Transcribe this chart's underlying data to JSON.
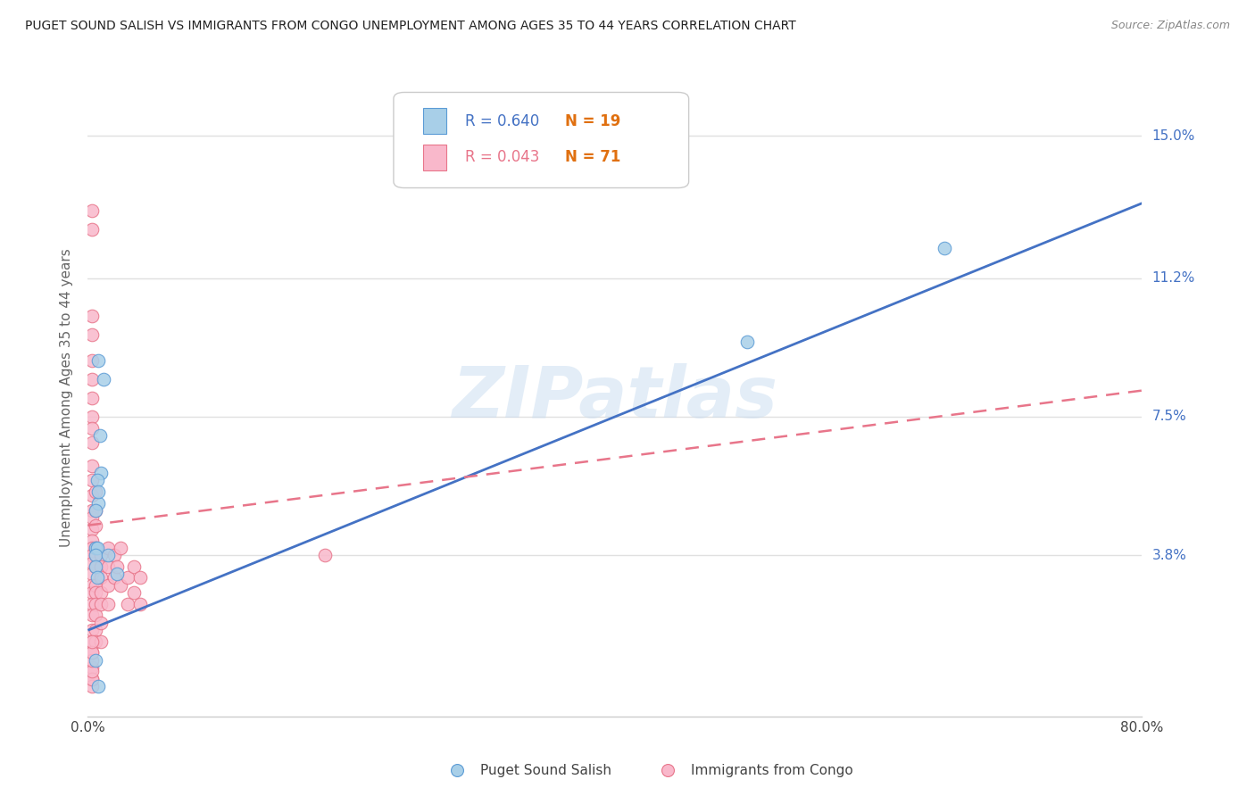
{
  "title": "PUGET SOUND SALISH VS IMMIGRANTS FROM CONGO UNEMPLOYMENT AMONG AGES 35 TO 44 YEARS CORRELATION CHART",
  "source": "Source: ZipAtlas.com",
  "ylabel": "Unemployment Among Ages 35 to 44 years",
  "xlim": [
    0,
    0.8
  ],
  "ylim": [
    -0.005,
    0.165
  ],
  "xticks": [
    0.0,
    0.1,
    0.2,
    0.3,
    0.4,
    0.5,
    0.6,
    0.7,
    0.8
  ],
  "xticklabels": [
    "0.0%",
    "",
    "",
    "",
    "",
    "",
    "",
    "",
    "80.0%"
  ],
  "ytick_positions": [
    0.038,
    0.075,
    0.112,
    0.15
  ],
  "ytick_labels": [
    "3.8%",
    "7.5%",
    "11.2%",
    "15.0%"
  ],
  "watermark": "ZIPatlas",
  "legend_blue_r": "R = 0.640",
  "legend_blue_n": "N = 19",
  "legend_pink_r": "R = 0.043",
  "legend_pink_n": "N = 71",
  "legend_label_blue": "Puget Sound Salish",
  "legend_label_pink": "Immigrants from Congo",
  "blue_color": "#a8cfe8",
  "pink_color": "#f9b8cb",
  "blue_edge_color": "#5b9bd5",
  "pink_edge_color": "#e8758a",
  "blue_line_color": "#4472c4",
  "pink_line_color": "#e8758a",
  "blue_scatter": {
    "x": [
      0.008,
      0.012,
      0.009,
      0.01,
      0.007,
      0.008,
      0.006,
      0.006,
      0.007,
      0.006,
      0.015,
      0.022,
      0.006,
      0.006,
      0.65,
      0.007,
      0.008,
      0.5,
      0.008
    ],
    "y": [
      0.09,
      0.085,
      0.07,
      0.06,
      0.058,
      0.052,
      0.05,
      0.04,
      0.04,
      0.038,
      0.038,
      0.033,
      0.035,
      0.01,
      0.12,
      0.032,
      0.003,
      0.095,
      0.055
    ]
  },
  "pink_scatter": {
    "x": [
      0.003,
      0.003,
      0.003,
      0.003,
      0.003,
      0.003,
      0.003,
      0.003,
      0.003,
      0.003,
      0.003,
      0.003,
      0.003,
      0.003,
      0.003,
      0.003,
      0.003,
      0.003,
      0.003,
      0.003,
      0.003,
      0.003,
      0.003,
      0.003,
      0.003,
      0.003,
      0.003,
      0.003,
      0.003,
      0.003,
      0.006,
      0.006,
      0.006,
      0.006,
      0.006,
      0.006,
      0.006,
      0.006,
      0.006,
      0.006,
      0.006,
      0.006,
      0.01,
      0.01,
      0.01,
      0.01,
      0.01,
      0.01,
      0.01,
      0.015,
      0.015,
      0.015,
      0.015,
      0.02,
      0.02,
      0.022,
      0.025,
      0.025,
      0.03,
      0.03,
      0.035,
      0.035,
      0.04,
      0.04,
      0.003,
      0.003,
      0.003,
      0.003,
      0.003,
      0.003,
      0.18
    ],
    "y": [
      0.13,
      0.125,
      0.102,
      0.097,
      0.09,
      0.085,
      0.08,
      0.075,
      0.072,
      0.068,
      0.062,
      0.058,
      0.054,
      0.05,
      0.048,
      0.045,
      0.042,
      0.04,
      0.038,
      0.036,
      0.033,
      0.03,
      0.028,
      0.025,
      0.022,
      0.018,
      0.015,
      0.012,
      0.008,
      0.005,
      0.055,
      0.05,
      0.046,
      0.04,
      0.038,
      0.035,
      0.03,
      0.028,
      0.025,
      0.022,
      0.018,
      0.015,
      0.038,
      0.035,
      0.032,
      0.028,
      0.025,
      0.02,
      0.015,
      0.04,
      0.035,
      0.03,
      0.025,
      0.038,
      0.032,
      0.035,
      0.04,
      0.03,
      0.032,
      0.025,
      0.035,
      0.028,
      0.032,
      0.025,
      0.003,
      0.005,
      0.007,
      0.01,
      0.012,
      0.015,
      0.038
    ]
  },
  "blue_trend": {
    "x": [
      0.0,
      0.8
    ],
    "y": [
      0.018,
      0.132
    ]
  },
  "pink_trend": {
    "x": [
      0.0,
      0.8
    ],
    "y": [
      0.046,
      0.082
    ]
  },
  "background_color": "#ffffff",
  "grid_color": "#e0e0e0",
  "axis_color": "#cccccc",
  "n_color": "#e07010",
  "r_blue_color": "#4472c4",
  "r_pink_color": "#e8758a"
}
